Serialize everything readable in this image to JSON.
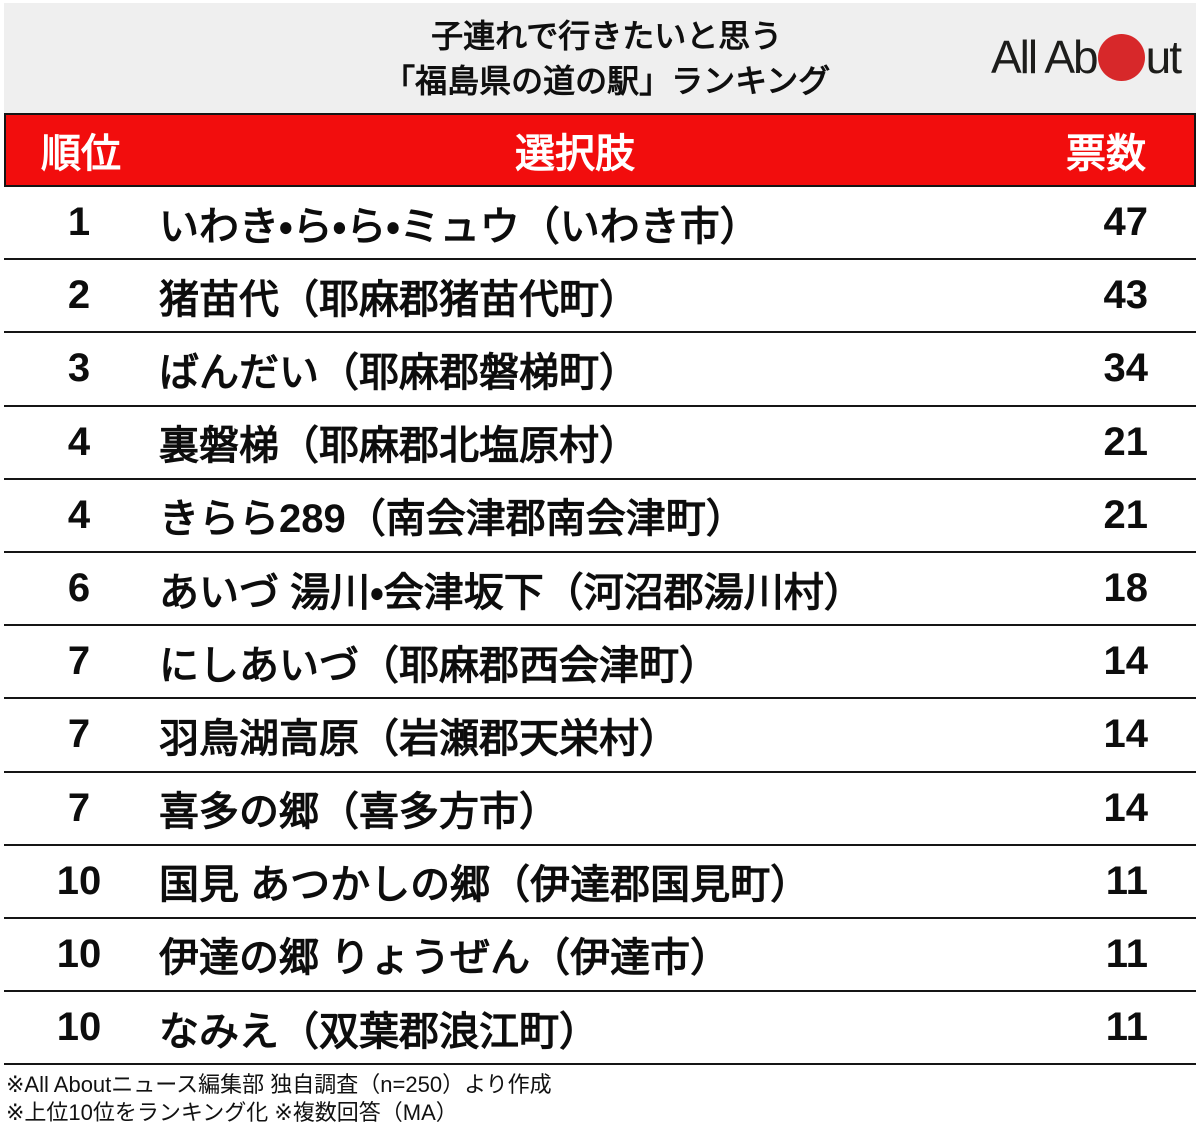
{
  "colors": {
    "header_red": "#f20d0d",
    "band_gray": "#efefef",
    "logo_dot_red": "#d7282a",
    "separator": "#151515"
  },
  "header": {
    "title_line1": "子連れで行きたいと思う",
    "title_line2": "「福島県の道の駅」ランキング",
    "logo": {
      "name": "All About",
      "text_before": "All Ab",
      "text_after": "ut"
    }
  },
  "table": {
    "columns": {
      "rank": "順位",
      "choice": "選択肢",
      "votes": "票数"
    },
    "rows": [
      {
        "rank": "1",
        "choice": "いわき・ら・ら・ミュウ（いわき市）",
        "votes": "47"
      },
      {
        "rank": "2",
        "choice": "猪苗代（耶麻郡猪苗代町）",
        "votes": "43"
      },
      {
        "rank": "3",
        "choice": "ばんだい（耶麻郡磐梯町）",
        "votes": "34"
      },
      {
        "rank": "4",
        "choice": "裏磐梯（耶麻郡北塩原村）",
        "votes": "21"
      },
      {
        "rank": "4",
        "choice": "きらら289（南会津郡南会津町）",
        "votes": "21"
      },
      {
        "rank": "6",
        "choice": "あいづ 湯川・会津坂下（河沼郡湯川村）",
        "votes": "18"
      },
      {
        "rank": "7",
        "choice": "にしあいづ（耶麻郡西会津町）",
        "votes": "14"
      },
      {
        "rank": "7",
        "choice": "羽鳥湖高原（岩瀬郡天栄村）",
        "votes": "14"
      },
      {
        "rank": "7",
        "choice": "喜多の郷（喜多方市）",
        "votes": "14"
      },
      {
        "rank": "10",
        "choice": "国見 あつかしの郷（伊達郡国見町）",
        "votes": "11"
      },
      {
        "rank": "10",
        "choice": "伊達の郷 りょうぜん（伊達市）",
        "votes": "11"
      },
      {
        "rank": "10",
        "choice": "なみえ（双葉郡浪江町）",
        "votes": "11"
      }
    ]
  },
  "footer": {
    "note1": "※All Aboutニュース編集部 独自調査（n=250）より作成",
    "note2": "※上位10位をランキング化 ※複数回答（MA）"
  },
  "chart_data": {
    "type": "table",
    "title": "子連れで行きたいと思う「福島県の道の駅」ランキング",
    "columns": [
      "順位",
      "選択肢",
      "票数"
    ],
    "rows": [
      [
        1,
        "いわき・ら・ら・ミュウ（いわき市）",
        47
      ],
      [
        2,
        "猪苗代（耶麻郡猪苗代町）",
        43
      ],
      [
        3,
        "ばんだい（耶麻郡磐梯町）",
        34
      ],
      [
        4,
        "裏磐梯（耶麻郡北塩原村）",
        21
      ],
      [
        4,
        "きらら289（南会津郡南会津町）",
        21
      ],
      [
        6,
        "あいづ 湯川・会津坂下（河沼郡湯川村）",
        18
      ],
      [
        7,
        "にしあいづ（耶麻郡西会津町）",
        14
      ],
      [
        7,
        "羽鳥湖高原（岩瀬郡天栄村）",
        14
      ],
      [
        7,
        "喜多の郷（喜多方市）",
        14
      ],
      [
        10,
        "国見 あつかしの郷（伊達郡国見町）",
        11
      ],
      [
        10,
        "伊達の郷 りょうぜん（伊達市）",
        11
      ],
      [
        10,
        "なみえ（双葉郡浪江町）",
        11
      ]
    ],
    "notes": [
      "※All Aboutニュース編集部 独自調査（n=250）より作成",
      "※上位10位をランキング化 ※複数回答（MA）"
    ],
    "source": "All About"
  }
}
